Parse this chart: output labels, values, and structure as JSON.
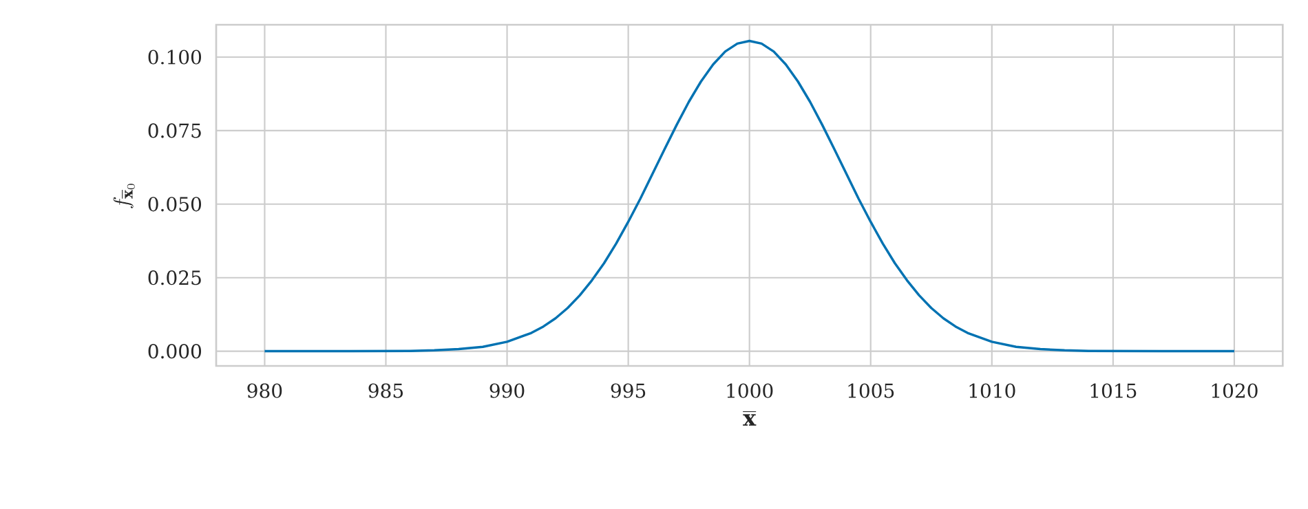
{
  "chart_data": {
    "type": "line",
    "xlabel": "\\overline{\\mathbf{x}}",
    "ylabel": "f_{\\overline{\\mathbf{x}}_0}",
    "x": [
      980,
      983,
      986,
      987,
      988,
      989,
      990,
      991,
      991.5,
      992,
      992.5,
      993,
      993.5,
      994,
      994.5,
      995,
      995.5,
      996,
      996.5,
      997,
      997.5,
      998,
      998.5,
      999,
      999.5,
      1000,
      1000.5,
      1001,
      1001.5,
      1002,
      1002.5,
      1003,
      1003.5,
      1004,
      1004.5,
      1005,
      1005.5,
      1006,
      1006.5,
      1007,
      1007.5,
      1008,
      1008.5,
      1009,
      1010,
      1011,
      1012,
      1013,
      1014,
      1017,
      1020
    ],
    "series": [
      {
        "color": "#0072b2",
        "values": [
          0,
          0,
          0.0001,
          0.0003,
          0.0007,
          0.0015,
          0.0032,
          0.0062,
          0.0084,
          0.0112,
          0.0147,
          0.019,
          0.0241,
          0.0299,
          0.0366,
          0.044,
          0.0519,
          0.0603,
          0.0687,
          0.077,
          0.0848,
          0.0917,
          0.0975,
          0.1019,
          0.1046,
          0.1055,
          0.1046,
          0.1019,
          0.0975,
          0.0917,
          0.0848,
          0.077,
          0.0687,
          0.0603,
          0.0519,
          0.044,
          0.0366,
          0.0299,
          0.0241,
          0.019,
          0.0147,
          0.0112,
          0.0084,
          0.0062,
          0.0032,
          0.0015,
          0.0007,
          0.0003,
          0.0001,
          0,
          0
        ]
      }
    ],
    "xlim": [
      978,
      1022
    ],
    "ylim": [
      -0.005,
      0.111
    ],
    "xticks": [
      980,
      985,
      990,
      995,
      1000,
      1005,
      1010,
      1015,
      1020
    ],
    "yticks": [
      {
        "value": 0,
        "label": "0.000"
      },
      {
        "value": 0.025,
        "label": "0.025"
      },
      {
        "value": 0.05,
        "label": "0.050"
      },
      {
        "value": 0.075,
        "label": "0.075"
      },
      {
        "value": 0.1,
        "label": "0.100"
      }
    ],
    "grid": true,
    "marker": "none",
    "line_style": "solid"
  }
}
